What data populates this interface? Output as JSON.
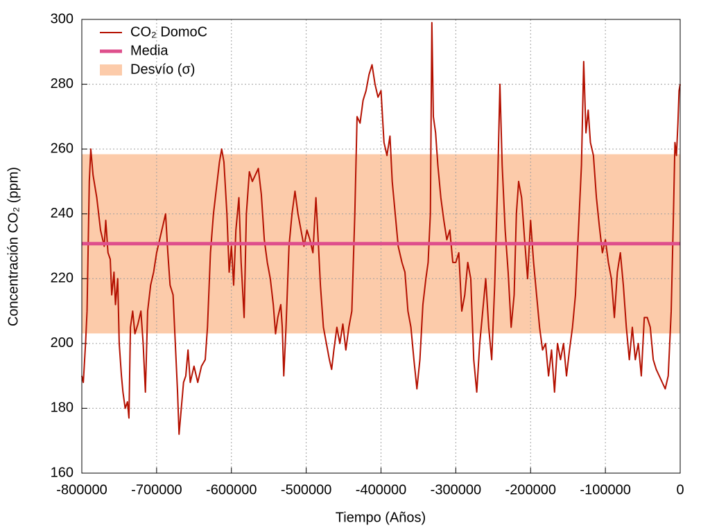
{
  "chart_data": {
    "type": "line",
    "xlabel": "Tiempo (Años)",
    "ylabel": "Concentración CO₂ (ppm)",
    "legend": "upper left",
    "grid": true,
    "xlim": [
      -800000,
      0
    ],
    "ylim": [
      160,
      300
    ],
    "xticks": [
      -800000,
      -700000,
      -600000,
      -500000,
      -400000,
      -300000,
      -200000,
      -100000,
      0
    ],
    "yticks": [
      160,
      180,
      200,
      220,
      240,
      260,
      280,
      300
    ],
    "band": {
      "name": "Desvío (σ)",
      "color": "#fccbaa",
      "lower": 203.1,
      "upper": 258.4
    },
    "mean": {
      "name": "Media",
      "color": "#de4f8c",
      "value": 230.8
    },
    "x": [
      -800000,
      -798000,
      -795000,
      -793000,
      -790000,
      -788000,
      -785000,
      -780000,
      -775000,
      -770000,
      -768000,
      -765000,
      -762000,
      -760000,
      -757000,
      -755000,
      -752000,
      -750000,
      -747000,
      -745000,
      -742000,
      -739000,
      -737000,
      -735000,
      -732000,
      -729000,
      -725000,
      -721000,
      -718000,
      -715000,
      -712000,
      -708000,
      -704000,
      -700000,
      -696000,
      -692000,
      -688000,
      -685000,
      -682000,
      -678000,
      -675000,
      -672000,
      -670000,
      -667000,
      -664000,
      -661000,
      -658000,
      -655000,
      -650000,
      -645000,
      -640000,
      -635000,
      -632000,
      -628000,
      -624000,
      -620000,
      -616000,
      -613000,
      -610000,
      -606000,
      -603000,
      -600000,
      -597000,
      -594000,
      -590000,
      -587000,
      -583000,
      -580000,
      -576000,
      -572000,
      -568000,
      -564000,
      -560000,
      -556000,
      -552000,
      -548000,
      -544000,
      -541000,
      -538000,
      -534000,
      -532000,
      -530000,
      -527000,
      -523000,
      -519000,
      -515000,
      -511000,
      -507000,
      -503000,
      -499000,
      -495000,
      -491000,
      -487000,
      -484000,
      -481000,
      -477000,
      -473000,
      -469000,
      -466000,
      -463000,
      -459000,
      -455000,
      -451000,
      -447000,
      -443000,
      -439000,
      -435000,
      -432000,
      -428000,
      -424000,
      -420000,
      -416000,
      -412000,
      -408000,
      -404000,
      -400000,
      -396000,
      -392000,
      -388000,
      -385000,
      -381000,
      -377000,
      -372000,
      -368000,
      -364000,
      -360000,
      -356000,
      -352000,
      -348000,
      -344000,
      -340000,
      -337000,
      -334000,
      -332000,
      -330000,
      -327000,
      -324000,
      -320000,
      -316000,
      -312000,
      -308000,
      -304000,
      -300000,
      -296000,
      -292000,
      -288000,
      -284000,
      -280000,
      -276000,
      -272000,
      -268000,
      -264000,
      -260000,
      -256000,
      -252000,
      -248000,
      -244000,
      -241000,
      -238000,
      -234000,
      -230000,
      -226000,
      -222000,
      -219000,
      -216000,
      -212000,
      -208000,
      -204000,
      -200000,
      -196000,
      -192000,
      -188000,
      -184000,
      -180000,
      -176000,
      -172000,
      -168000,
      -164000,
      -160000,
      -156000,
      -152000,
      -148000,
      -144000,
      -140000,
      -136000,
      -132000,
      -129000,
      -126000,
      -123000,
      -120000,
      -116000,
      -112000,
      -108000,
      -104000,
      -100000,
      -96000,
      -92000,
      -88000,
      -84000,
      -80000,
      -76000,
      -72000,
      -68000,
      -64000,
      -60000,
      -56000,
      -52000,
      -48000,
      -44000,
      -40000,
      -36000,
      -32000,
      -28000,
      -24000,
      -20000,
      -16000,
      -12000,
      -9000,
      -7000,
      -5000,
      -3000,
      -1500,
      0
    ],
    "series": [
      {
        "name": "CO₂ DomoC",
        "color": "#b41000",
        "values": [
          190,
          188,
          200,
          210,
          250,
          260,
          252,
          245,
          235,
          230,
          238,
          228,
          226,
          215,
          222,
          212,
          220,
          200,
          190,
          185,
          180,
          182,
          177,
          205,
          210,
          203,
          206,
          210,
          200,
          185,
          210,
          218,
          222,
          228,
          232,
          236,
          240,
          228,
          218,
          215,
          200,
          185,
          172,
          180,
          188,
          190,
          198,
          188,
          193,
          188,
          193,
          195,
          205,
          228,
          240,
          248,
          256,
          260,
          256,
          240,
          222,
          230,
          218,
          235,
          245,
          225,
          208,
          240,
          253,
          250,
          252,
          254,
          246,
          232,
          225,
          220,
          212,
          203,
          208,
          212,
          205,
          190,
          205,
          230,
          240,
          247,
          240,
          235,
          230,
          235,
          232,
          228,
          245,
          232,
          218,
          205,
          200,
          195,
          192,
          198,
          205,
          200,
          206,
          198,
          205,
          210,
          240,
          270,
          268,
          275,
          278,
          283,
          286,
          280,
          276,
          278,
          262,
          258,
          264,
          250,
          240,
          230,
          225,
          222,
          210,
          205,
          195,
          186,
          195,
          212,
          220,
          225,
          240,
          299,
          270,
          265,
          255,
          245,
          238,
          232,
          235,
          225,
          225,
          228,
          210,
          215,
          225,
          220,
          195,
          185,
          200,
          210,
          220,
          205,
          195,
          218,
          250,
          280,
          255,
          235,
          222,
          205,
          215,
          240,
          250,
          245,
          232,
          220,
          238,
          225,
          215,
          205,
          198,
          200,
          190,
          198,
          185,
          200,
          195,
          200,
          190,
          198,
          205,
          215,
          235,
          255,
          287,
          265,
          272,
          262,
          258,
          245,
          236,
          228,
          232,
          225,
          220,
          208,
          222,
          228,
          218,
          205,
          195,
          205,
          195,
          200,
          190,
          208,
          208,
          205,
          195,
          192,
          190,
          188,
          186,
          190,
          210,
          240,
          262,
          258,
          268,
          278,
          280
        ]
      }
    ]
  }
}
